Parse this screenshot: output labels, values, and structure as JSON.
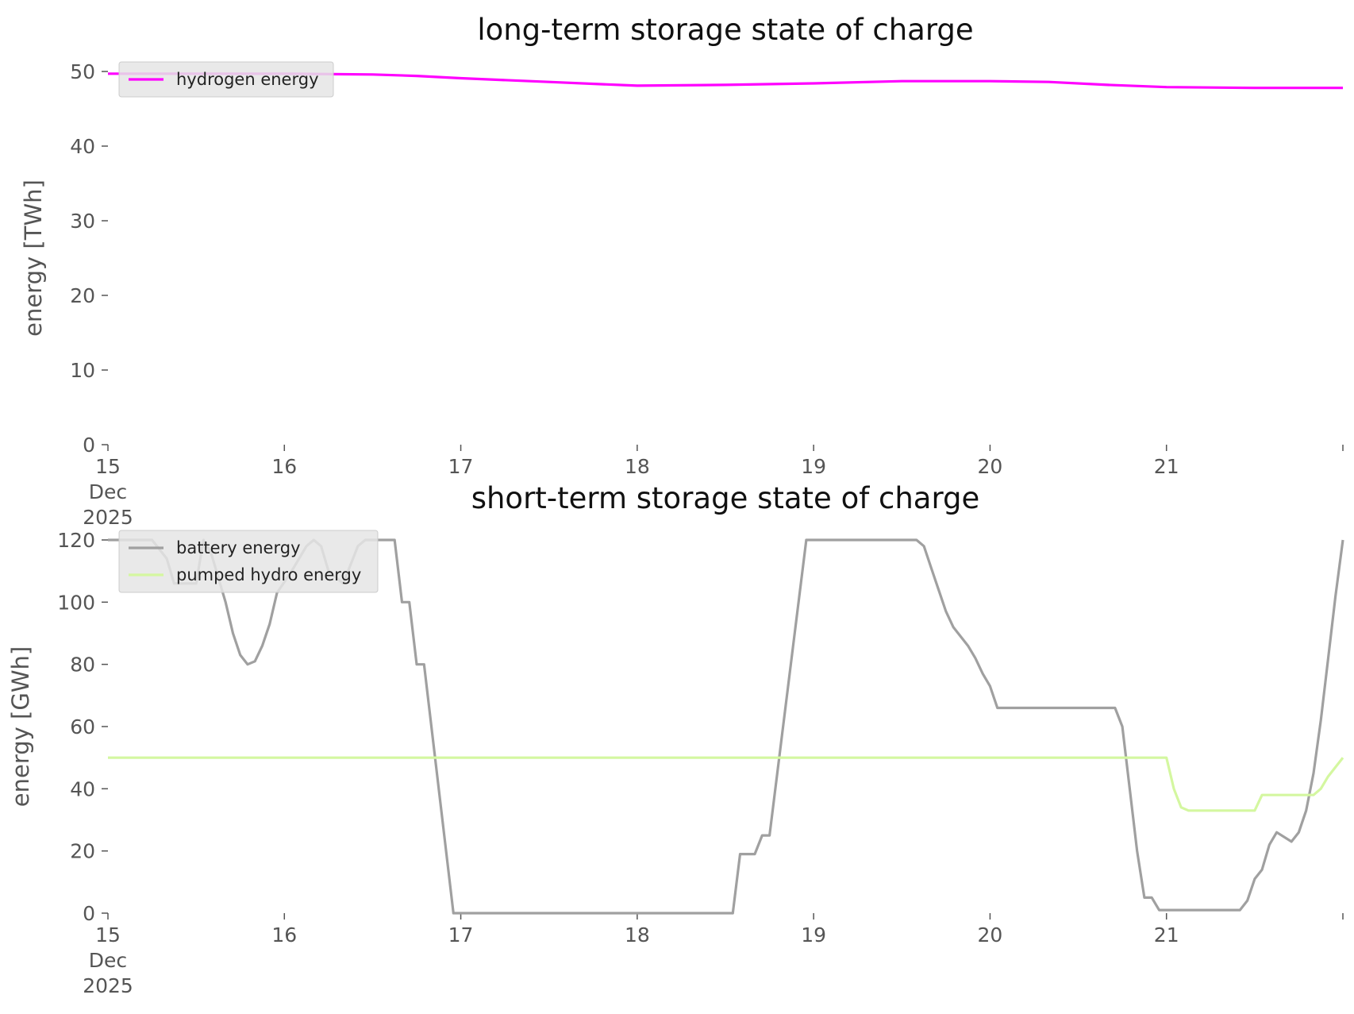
{
  "chart_data": [
    {
      "type": "line",
      "title": "long-term storage state of charge",
      "ylabel": "energy [TWh]",
      "xlabel": "",
      "xlim": [
        "2025-12-15",
        "2025-12-22"
      ],
      "ylim": [
        0,
        50
      ],
      "yticks": [
        0,
        10,
        20,
        30,
        40,
        50
      ],
      "xticks": [
        "15\nDec\n2025",
        "16",
        "17",
        "18",
        "19",
        "20",
        "21"
      ],
      "grid": false,
      "legend_position": "top-left",
      "series": [
        {
          "name": "hydrogen energy",
          "color": "#ff00ff",
          "points": [
            [
              "2025-12-15",
              49.7
            ],
            [
              "2025-12-16",
              49.7
            ],
            [
              "2025-12-16 12:00",
              49.6
            ],
            [
              "2025-12-16 18:00",
              49.4
            ],
            [
              "2025-12-17",
              49.1
            ],
            [
              "2025-12-17 12:00",
              48.6
            ],
            [
              "2025-12-18",
              48.1
            ],
            [
              "2025-12-18 12:00",
              48.2
            ],
            [
              "2025-12-19",
              48.4
            ],
            [
              "2025-12-19 12:00",
              48.7
            ],
            [
              "2025-12-20",
              48.7
            ],
            [
              "2025-12-20 08:00",
              48.6
            ],
            [
              "2025-12-20 16:00",
              48.2
            ],
            [
              "2025-12-21",
              47.9
            ],
            [
              "2025-12-21 12:00",
              47.8
            ],
            [
              "2025-12-22",
              47.8
            ]
          ]
        }
      ]
    },
    {
      "type": "line",
      "title": "short-term storage state of charge",
      "ylabel": "energy [GWh]",
      "xlabel": "",
      "xlim": [
        "2025-12-15",
        "2025-12-22"
      ],
      "ylim": [
        0,
        120
      ],
      "yticks": [
        0,
        20,
        40,
        60,
        80,
        100,
        120
      ],
      "xticks": [
        "15\nDec\n2025",
        "16",
        "17",
        "18",
        "19",
        "20",
        "21"
      ],
      "grid": false,
      "legend_position": "top-left",
      "series": [
        {
          "name": "battery energy",
          "color": "#a0a0a0",
          "points": [
            [
              "2025-12-15",
              120
            ],
            [
              "2025-12-15 06:00",
              120
            ],
            [
              "2025-12-15 08:00",
              114
            ],
            [
              "2025-12-15 09:00",
              106
            ],
            [
              "2025-12-15 12:00",
              106
            ],
            [
              "2025-12-15 13:00",
              120
            ],
            [
              "2025-12-15 14:00",
              116
            ],
            [
              "2025-12-15 16:00",
              100
            ],
            [
              "2025-12-15 17:00",
              90
            ],
            [
              "2025-12-15 18:00",
              83
            ],
            [
              "2025-12-15 19:00",
              80
            ],
            [
              "2025-12-15 20:00",
              81
            ],
            [
              "2025-12-15 21:00",
              86
            ],
            [
              "2025-12-15 22:00",
              93
            ],
            [
              "2025-12-15 23:00",
              103
            ],
            [
              "2025-12-16 01:00",
              110
            ],
            [
              "2025-12-16 03:00",
              118
            ],
            [
              "2025-12-16 04:00",
              120
            ],
            [
              "2025-12-16 05:00",
              118
            ],
            [
              "2025-12-16 06:00",
              110
            ],
            [
              "2025-12-16 08:00",
              106
            ],
            [
              "2025-12-16 10:00",
              118
            ],
            [
              "2025-12-16 11:00",
              120
            ],
            [
              "2025-12-16 15:00",
              120
            ],
            [
              "2025-12-16 16:00",
              100
            ],
            [
              "2025-12-16 17:00",
              100
            ],
            [
              "2025-12-16 18:00",
              80
            ],
            [
              "2025-12-16 19:00",
              80
            ],
            [
              "2025-12-16 23:00",
              0
            ],
            [
              "2025-12-18 13:00",
              0
            ],
            [
              "2025-12-18 14:00",
              19
            ],
            [
              "2025-12-18 16:00",
              19
            ],
            [
              "2025-12-18 17:00",
              25
            ],
            [
              "2025-12-18 18:00",
              25
            ],
            [
              "2025-12-18 23:00",
              120
            ],
            [
              "2025-12-19 14:00",
              120
            ],
            [
              "2025-12-19 15:00",
              118
            ],
            [
              "2025-12-19 16:00",
              111
            ],
            [
              "2025-12-19 17:00",
              104
            ],
            [
              "2025-12-19 18:00",
              97
            ],
            [
              "2025-12-19 19:00",
              92
            ],
            [
              "2025-12-19 21:00",
              86
            ],
            [
              "2025-12-19 22:00",
              82
            ],
            [
              "2025-12-19 23:00",
              77
            ],
            [
              "2025-12-20 00:00",
              73
            ],
            [
              "2025-12-20 01:00",
              66
            ],
            [
              "2025-12-20 17:00",
              66
            ],
            [
              "2025-12-20 18:00",
              60
            ],
            [
              "2025-12-20 19:00",
              40
            ],
            [
              "2025-12-20 20:00",
              20
            ],
            [
              "2025-12-20 21:00",
              5
            ],
            [
              "2025-12-20 22:00",
              5
            ],
            [
              "2025-12-20 23:00",
              1
            ],
            [
              "2025-12-21 10:00",
              1
            ],
            [
              "2025-12-21 11:00",
              4
            ],
            [
              "2025-12-21 12:00",
              11
            ],
            [
              "2025-12-21 13:00",
              14
            ],
            [
              "2025-12-21 14:00",
              22
            ],
            [
              "2025-12-21 15:00",
              26
            ],
            [
              "2025-12-21 17:00",
              23
            ],
            [
              "2025-12-21 18:00",
              26
            ],
            [
              "2025-12-21 19:00",
              33
            ],
            [
              "2025-12-21 20:00",
              45
            ],
            [
              "2025-12-21 21:00",
              62
            ],
            [
              "2025-12-21 22:00",
              82
            ],
            [
              "2025-12-21 23:00",
              102
            ],
            [
              "2025-12-22",
              120
            ]
          ]
        },
        {
          "name": "pumped hydro energy",
          "color": "#d4f7a0",
          "points": [
            [
              "2025-12-15",
              50
            ],
            [
              "2025-12-21 00:00",
              50
            ],
            [
              "2025-12-21 01:00",
              40
            ],
            [
              "2025-12-21 02:00",
              34
            ],
            [
              "2025-12-21 03:00",
              33
            ],
            [
              "2025-12-21 12:00",
              33
            ],
            [
              "2025-12-21 13:00",
              38
            ],
            [
              "2025-12-21 20:00",
              38
            ],
            [
              "2025-12-21 21:00",
              40
            ],
            [
              "2025-12-21 22:00",
              44
            ],
            [
              "2025-12-22",
              50
            ]
          ]
        }
      ]
    }
  ]
}
